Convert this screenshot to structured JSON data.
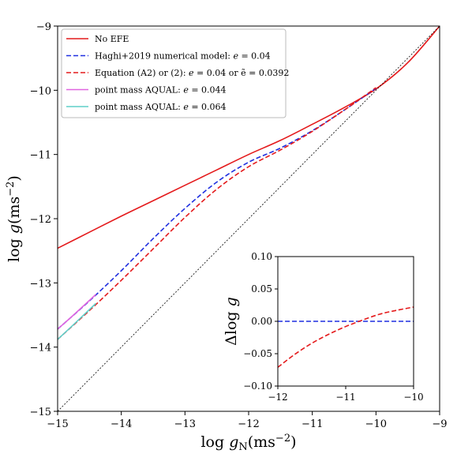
{
  "chart_data": [
    {
      "type": "line",
      "xlabel": "log g_N(ms^-2)",
      "ylabel": "log g(ms^-2)",
      "xlim": [
        -15,
        -9
      ],
      "ylim": [
        -15,
        -9
      ],
      "xticks": [
        "−15",
        "−14",
        "−13",
        "−12",
        "−11",
        "−10",
        "−9"
      ],
      "yticks": [
        "−15",
        "−14",
        "−13",
        "−12",
        "−11",
        "−10",
        "−9"
      ],
      "grid": false,
      "legend_position": "top-left",
      "series": [
        {
          "name": "No EFE",
          "color": "#e41a1c",
          "style": "solid",
          "x": [
            -15,
            -14.5,
            -14,
            -13.5,
            -13,
            -12.5,
            -12,
            -11.5,
            -11,
            -10.5,
            -10,
            -9.5,
            -9
          ],
          "y": [
            -12.46,
            -12.21,
            -11.96,
            -11.72,
            -11.48,
            -11.24,
            -11.0,
            -10.78,
            -10.53,
            -10.27,
            -9.98,
            -9.57,
            -9.0
          ]
        },
        {
          "name": "Haghi+2019 numerical model: e = 0.04",
          "color": "#1f2fe0",
          "style": "dashed",
          "x": [
            -15,
            -14.5,
            -14,
            -13.5,
            -13,
            -12.5,
            -12,
            -11.5,
            -11,
            -10.5,
            -10
          ],
          "y": [
            -13.72,
            -13.28,
            -12.81,
            -12.31,
            -11.84,
            -11.43,
            -11.12,
            -10.9,
            -10.63,
            -10.31,
            -9.97
          ]
        },
        {
          "name": "Equation (A2) or (2): e = 0.04 or ẽ = 0.0392",
          "color": "#e41a1c",
          "style": "dashed",
          "x": [
            -15,
            -14.5,
            -14,
            -13.5,
            -13,
            -12.5,
            -12,
            -11.5,
            -11,
            -10.5,
            -10
          ],
          "y": [
            -13.88,
            -13.43,
            -12.96,
            -12.47,
            -11.98,
            -11.54,
            -11.19,
            -10.93,
            -10.64,
            -10.31,
            -9.96
          ]
        },
        {
          "name": "point mass AQUAL: e = 0.044",
          "color": "#e066e0",
          "style": "solid",
          "x": [
            -15,
            -14.75,
            -14.4
          ],
          "y": [
            -13.72,
            -13.5,
            -13.18
          ]
        },
        {
          "name": "point mass AQUAL: e = 0.064",
          "color": "#5ecfc9",
          "style": "solid",
          "x": [
            -15,
            -14.75,
            -14.4
          ],
          "y": [
            -13.88,
            -13.65,
            -13.32
          ]
        },
        {
          "name": "",
          "color": "#000000",
          "style": "dotted",
          "x": [
            -15,
            -9
          ],
          "y": [
            -15,
            -9
          ]
        }
      ]
    },
    {
      "type": "line",
      "xlabel": "",
      "ylabel": "Δlog g",
      "xlim": [
        -12,
        -10
      ],
      "ylim": [
        -0.1,
        0.1
      ],
      "xticks": [
        "−12",
        "−11",
        "−10"
      ],
      "yticks": [
        "−0.10",
        "−0.05",
        "0.00",
        "0.05",
        "0.10"
      ],
      "series": [
        {
          "color": "#1f2fe0",
          "style": "dashed",
          "x": [
            -12,
            -10
          ],
          "y": [
            0.0,
            0.0
          ]
        },
        {
          "color": "#e41a1c",
          "style": "dashed",
          "x": [
            -12,
            -11.75,
            -11.5,
            -11.25,
            -11,
            -10.75,
            -10.5,
            -10.25,
            -10
          ],
          "y": [
            -0.071,
            -0.051,
            -0.034,
            -0.02,
            -0.008,
            0.002,
            0.011,
            0.017,
            0.022
          ]
        }
      ]
    }
  ]
}
